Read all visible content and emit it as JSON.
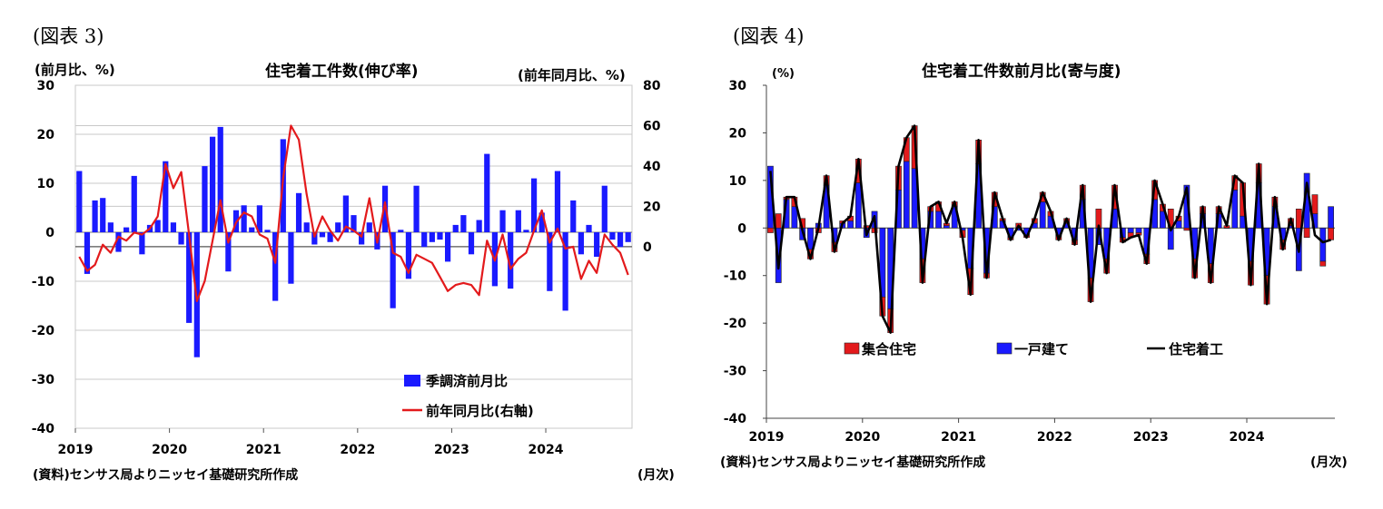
{
  "figure3": {
    "label": "(図表 3)",
    "title": "住宅着工件数(伸び率)",
    "left_unit": "(前月比、%)",
    "right_unit": "(前年同月比、%)",
    "source": "(資料)センサス局よりニッセイ基礎研究所作成",
    "month_suffix": "(月次)"
  },
  "figure4": {
    "label": "(図表 4)",
    "title": "住宅着工件数前月比(寄与度)",
    "unit": "(%)",
    "source": "(資料)センサス局よりニッセイ基礎研究所作成",
    "month_suffix": "(月次)"
  },
  "chart_data": [
    {
      "id": "fig3",
      "type": "bar",
      "title": "住宅着工件数(伸び率)",
      "x_tick_labels": [
        "2019",
        "2020",
        "2021",
        "2022",
        "2023",
        "2024"
      ],
      "y_left": {
        "label": "(前月比、%)",
        "range": [
          -40,
          30
        ],
        "ticks": [
          30,
          20,
          10,
          0,
          -10,
          -20,
          -30,
          -40
        ]
      },
      "y_right": {
        "label": "(前年同月比、%)",
        "range": [
          -90,
          80
        ],
        "ticks": [
          80,
          60,
          40,
          20,
          0
        ]
      },
      "grid": true,
      "legend_position": "bottom-right",
      "series": [
        {
          "name": "季調済前月比",
          "type": "bar",
          "axis": "left",
          "color": "#1a1aff",
          "values": [
            12.5,
            -8.5,
            6.5,
            7,
            2,
            -4,
            1,
            11.5,
            -4.5,
            1.5,
            2.5,
            14.5,
            2,
            -2.5,
            -18.5,
            -25.5,
            13.5,
            19.5,
            21.5,
            -8,
            4.5,
            5.5,
            1,
            5.5,
            0.5,
            -14,
            19,
            -10.5,
            8,
            2,
            -2.5,
            -1,
            -2,
            2,
            7.5,
            3.5,
            -2.5,
            2,
            -3.5,
            9.5,
            -15.5,
            0.5,
            -9.5,
            9.5,
            -3,
            -2,
            -1.5,
            -6,
            1.5,
            3.5,
            -4.5,
            2.5,
            16,
            -11,
            4.5,
            -11.5,
            4.5,
            0.5,
            11,
            4,
            -12,
            12.5,
            -16,
            6.5,
            -4.5,
            1.5,
            -5,
            9.5,
            -1.5,
            -3,
            -2
          ]
        },
        {
          "name": "前年同月比(右軸)",
          "type": "line",
          "axis": "right",
          "color": "#e31a1c",
          "values": [
            -5,
            -12,
            -9,
            1,
            -3,
            5,
            3,
            7,
            6,
            9,
            15,
            41,
            29,
            37,
            6,
            -27,
            -17,
            3,
            23,
            2,
            12,
            17,
            15,
            6,
            4,
            -8,
            34,
            60,
            53,
            26,
            5,
            15,
            8,
            3,
            10,
            8,
            5,
            24,
            2,
            22,
            -3,
            -5,
            -13,
            -4,
            -6,
            -8,
            -15,
            -22,
            -19,
            -18,
            -19,
            -24,
            3,
            -7,
            6,
            -11,
            -6,
            -3,
            8,
            18,
            2,
            9,
            -1,
            0,
            -16,
            -7,
            -13,
            6,
            1,
            -3,
            -14
          ]
        }
      ]
    },
    {
      "id": "fig4",
      "type": "bar",
      "title": "住宅着工件数前月比(寄与度)",
      "x_tick_labels": [
        "2019",
        "2020",
        "2021",
        "2022",
        "2023",
        "2024"
      ],
      "y": {
        "label": "(%)",
        "range": [
          -40,
          30
        ],
        "ticks": [
          30,
          20,
          10,
          0,
          -10,
          -20,
          -30,
          -40
        ]
      },
      "grid": false,
      "legend_position": "bottom",
      "series": [
        {
          "name": "集合住宅",
          "type": "stacked_bar",
          "color": "#e31a1c",
          "values": [
            -1,
            3,
            0.5,
            2,
            2,
            -2,
            -1,
            2,
            -2,
            0.5,
            1,
            5,
            0.5,
            -1,
            -4,
            -5,
            5,
            5,
            9,
            -5,
            1,
            2,
            0.5,
            1,
            -1.5,
            -5.5,
            5,
            -1,
            3,
            0.5,
            -0.5,
            1,
            -0.5,
            1,
            2,
            1,
            -1,
            1,
            -1,
            3,
            -5,
            4,
            -3,
            5,
            -1,
            -1,
            -0.5,
            -2,
            4,
            1.5,
            4,
            1,
            -0.5,
            -4,
            1.5,
            -4,
            1.5,
            0.5,
            3,
            7,
            -5,
            4,
            -6,
            2,
            -2,
            1.5,
            4,
            -2,
            4,
            -1,
            -2.5
          ]
        },
        {
          "name": "一戸建て",
          "type": "stacked_bar",
          "color": "#1a1aff",
          "values": [
            13,
            -11.5,
            6,
            4.5,
            -2.5,
            -4.5,
            1,
            9,
            -3,
            1,
            1.5,
            9.5,
            -2,
            3.5,
            -14.5,
            -17,
            8,
            14,
            12.5,
            -6.5,
            3.5,
            3.5,
            0.5,
            4.5,
            -0.5,
            -8.5,
            13.5,
            -9.5,
            4.5,
            1.5,
            -2,
            -0.5,
            -1.5,
            1,
            5.5,
            2.5,
            -1.5,
            1,
            -2.5,
            6,
            -10.5,
            -3.5,
            -6.5,
            4,
            -2,
            -1,
            -1,
            -5.5,
            6,
            3.5,
            -4.5,
            1.5,
            9,
            -6.5,
            3,
            -7.5,
            3,
            0,
            8,
            2.5,
            -7,
            9.5,
            -10,
            4.5,
            -2.5,
            0.5,
            -9,
            11.5,
            3,
            -7,
            4.5
          ]
        },
        {
          "name": "住宅着工",
          "type": "line",
          "color": "#000000",
          "values": [
            12,
            -8.5,
            6.5,
            6.5,
            -0.5,
            -6.5,
            0,
            11,
            -5,
            1,
            2.5,
            14.5,
            -1.5,
            2.5,
            -18.5,
            -22,
            13,
            19,
            21.5,
            -11.5,
            4.5,
            5.5,
            1,
            5.5,
            -2,
            -14,
            18.5,
            -10.5,
            7.5,
            2,
            -2.5,
            0.5,
            -2,
            2,
            7.5,
            3.5,
            -2.5,
            2,
            -3.5,
            9,
            -15.5,
            0.5,
            -9.5,
            9,
            -3,
            -2,
            -1.5,
            -7.5,
            10,
            5,
            -0.5,
            2.5,
            8.5,
            -10.5,
            4.5,
            -11.5,
            4.5,
            0.5,
            11,
            9.5,
            -12,
            13.5,
            -16,
            6.5,
            -4.5,
            2,
            -5,
            9.5,
            -1.5,
            -3,
            -2.5
          ]
        }
      ]
    }
  ]
}
